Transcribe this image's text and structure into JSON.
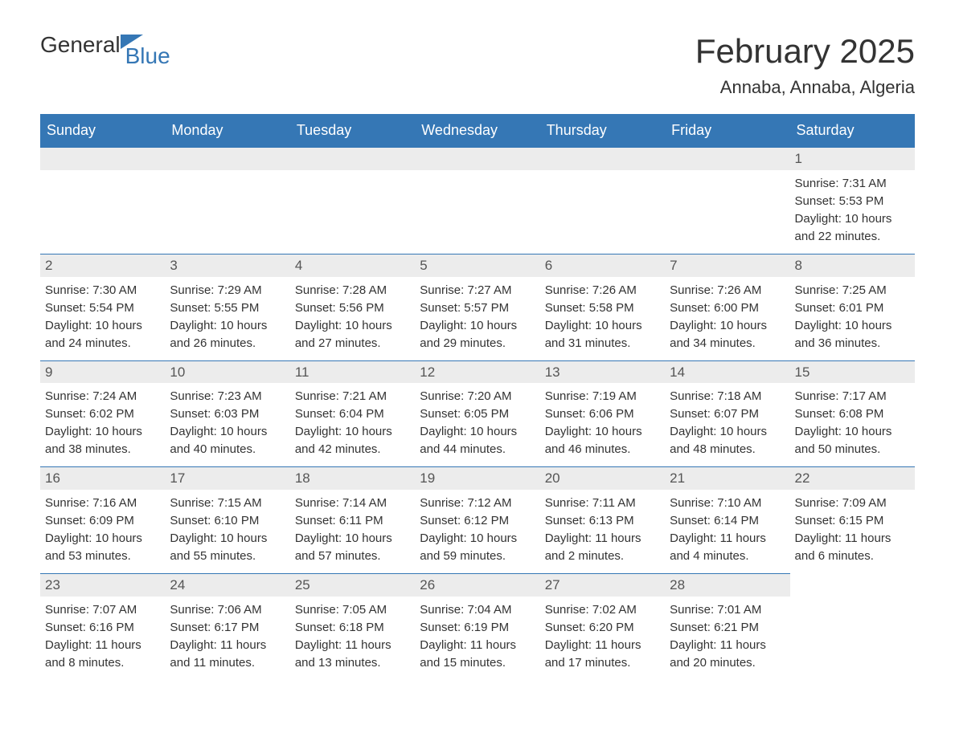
{
  "logo": {
    "text1": "General",
    "text2": "Blue"
  },
  "title": "February 2025",
  "location": "Annaba, Annaba, Algeria",
  "colors": {
    "header_bg": "#3577b5",
    "header_text": "#ffffff",
    "daynum_bg": "#ececec",
    "daynum_border": "#3577b5",
    "body_text": "#333333",
    "page_bg": "#ffffff"
  },
  "day_headers": [
    "Sunday",
    "Monday",
    "Tuesday",
    "Wednesday",
    "Thursday",
    "Friday",
    "Saturday"
  ],
  "labels": {
    "sunrise": "Sunrise:",
    "sunset": "Sunset:",
    "daylight": "Daylight:"
  },
  "weeks": [
    [
      {
        "empty": true
      },
      {
        "empty": true
      },
      {
        "empty": true
      },
      {
        "empty": true
      },
      {
        "empty": true
      },
      {
        "empty": true
      },
      {
        "day": "1",
        "sunrise": "7:31 AM",
        "sunset": "5:53 PM",
        "daylight1": "10 hours",
        "daylight2": "and 22 minutes."
      }
    ],
    [
      {
        "day": "2",
        "sunrise": "7:30 AM",
        "sunset": "5:54 PM",
        "daylight1": "10 hours",
        "daylight2": "and 24 minutes."
      },
      {
        "day": "3",
        "sunrise": "7:29 AM",
        "sunset": "5:55 PM",
        "daylight1": "10 hours",
        "daylight2": "and 26 minutes."
      },
      {
        "day": "4",
        "sunrise": "7:28 AM",
        "sunset": "5:56 PM",
        "daylight1": "10 hours",
        "daylight2": "and 27 minutes."
      },
      {
        "day": "5",
        "sunrise": "7:27 AM",
        "sunset": "5:57 PM",
        "daylight1": "10 hours",
        "daylight2": "and 29 minutes."
      },
      {
        "day": "6",
        "sunrise": "7:26 AM",
        "sunset": "5:58 PM",
        "daylight1": "10 hours",
        "daylight2": "and 31 minutes."
      },
      {
        "day": "7",
        "sunrise": "7:26 AM",
        "sunset": "6:00 PM",
        "daylight1": "10 hours",
        "daylight2": "and 34 minutes."
      },
      {
        "day": "8",
        "sunrise": "7:25 AM",
        "sunset": "6:01 PM",
        "daylight1": "10 hours",
        "daylight2": "and 36 minutes."
      }
    ],
    [
      {
        "day": "9",
        "sunrise": "7:24 AM",
        "sunset": "6:02 PM",
        "daylight1": "10 hours",
        "daylight2": "and 38 minutes."
      },
      {
        "day": "10",
        "sunrise": "7:23 AM",
        "sunset": "6:03 PM",
        "daylight1": "10 hours",
        "daylight2": "and 40 minutes."
      },
      {
        "day": "11",
        "sunrise": "7:21 AM",
        "sunset": "6:04 PM",
        "daylight1": "10 hours",
        "daylight2": "and 42 minutes."
      },
      {
        "day": "12",
        "sunrise": "7:20 AM",
        "sunset": "6:05 PM",
        "daylight1": "10 hours",
        "daylight2": "and 44 minutes."
      },
      {
        "day": "13",
        "sunrise": "7:19 AM",
        "sunset": "6:06 PM",
        "daylight1": "10 hours",
        "daylight2": "and 46 minutes."
      },
      {
        "day": "14",
        "sunrise": "7:18 AM",
        "sunset": "6:07 PM",
        "daylight1": "10 hours",
        "daylight2": "and 48 minutes."
      },
      {
        "day": "15",
        "sunrise": "7:17 AM",
        "sunset": "6:08 PM",
        "daylight1": "10 hours",
        "daylight2": "and 50 minutes."
      }
    ],
    [
      {
        "day": "16",
        "sunrise": "7:16 AM",
        "sunset": "6:09 PM",
        "daylight1": "10 hours",
        "daylight2": "and 53 minutes."
      },
      {
        "day": "17",
        "sunrise": "7:15 AM",
        "sunset": "6:10 PM",
        "daylight1": "10 hours",
        "daylight2": "and 55 minutes."
      },
      {
        "day": "18",
        "sunrise": "7:14 AM",
        "sunset": "6:11 PM",
        "daylight1": "10 hours",
        "daylight2": "and 57 minutes."
      },
      {
        "day": "19",
        "sunrise": "7:12 AM",
        "sunset": "6:12 PM",
        "daylight1": "10 hours",
        "daylight2": "and 59 minutes."
      },
      {
        "day": "20",
        "sunrise": "7:11 AM",
        "sunset": "6:13 PM",
        "daylight1": "11 hours",
        "daylight2": "and 2 minutes."
      },
      {
        "day": "21",
        "sunrise": "7:10 AM",
        "sunset": "6:14 PM",
        "daylight1": "11 hours",
        "daylight2": "and 4 minutes."
      },
      {
        "day": "22",
        "sunrise": "7:09 AM",
        "sunset": "6:15 PM",
        "daylight1": "11 hours",
        "daylight2": "and 6 minutes."
      }
    ],
    [
      {
        "day": "23",
        "sunrise": "7:07 AM",
        "sunset": "6:16 PM",
        "daylight1": "11 hours",
        "daylight2": "and 8 minutes."
      },
      {
        "day": "24",
        "sunrise": "7:06 AM",
        "sunset": "6:17 PM",
        "daylight1": "11 hours",
        "daylight2": "and 11 minutes."
      },
      {
        "day": "25",
        "sunrise": "7:05 AM",
        "sunset": "6:18 PM",
        "daylight1": "11 hours",
        "daylight2": "and 13 minutes."
      },
      {
        "day": "26",
        "sunrise": "7:04 AM",
        "sunset": "6:19 PM",
        "daylight1": "11 hours",
        "daylight2": "and 15 minutes."
      },
      {
        "day": "27",
        "sunrise": "7:02 AM",
        "sunset": "6:20 PM",
        "daylight1": "11 hours",
        "daylight2": "and 17 minutes."
      },
      {
        "day": "28",
        "sunrise": "7:01 AM",
        "sunset": "6:21 PM",
        "daylight1": "11 hours",
        "daylight2": "and 20 minutes."
      },
      {
        "empty": true,
        "noBar": true
      }
    ]
  ]
}
